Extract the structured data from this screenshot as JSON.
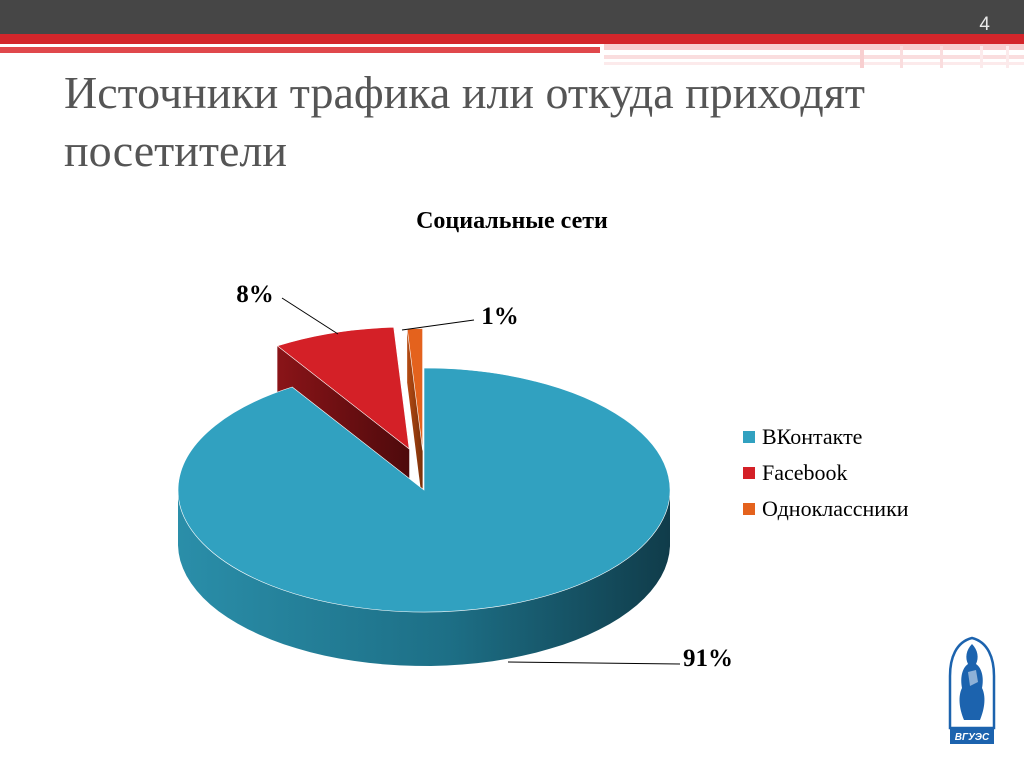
{
  "slide": {
    "number": "4",
    "title": "Источники трафика или откуда приходят посетители"
  },
  "logo": {
    "text": "ВГУЭС",
    "icon": "university-logo-icon",
    "color": "#1c63ae"
  },
  "colors": {
    "header_dark": "#464646",
    "header_red": "#d3262b",
    "title_text": "#555555"
  },
  "chart_data": {
    "type": "pie",
    "style": "3d-exploded",
    "title": "Социальные сети",
    "categories": [
      "ВКонтакте",
      "Facebook",
      "Одноклассники"
    ],
    "values": [
      91,
      8,
      1
    ],
    "labels": [
      "91%",
      "8%",
      "1%"
    ],
    "colors": [
      "#31a1c0",
      "#d42027",
      "#e4621d"
    ],
    "legend": {
      "position": "right",
      "entries": [
        "ВКонтакте",
        "Facebook",
        "Одноклассники"
      ]
    }
  }
}
